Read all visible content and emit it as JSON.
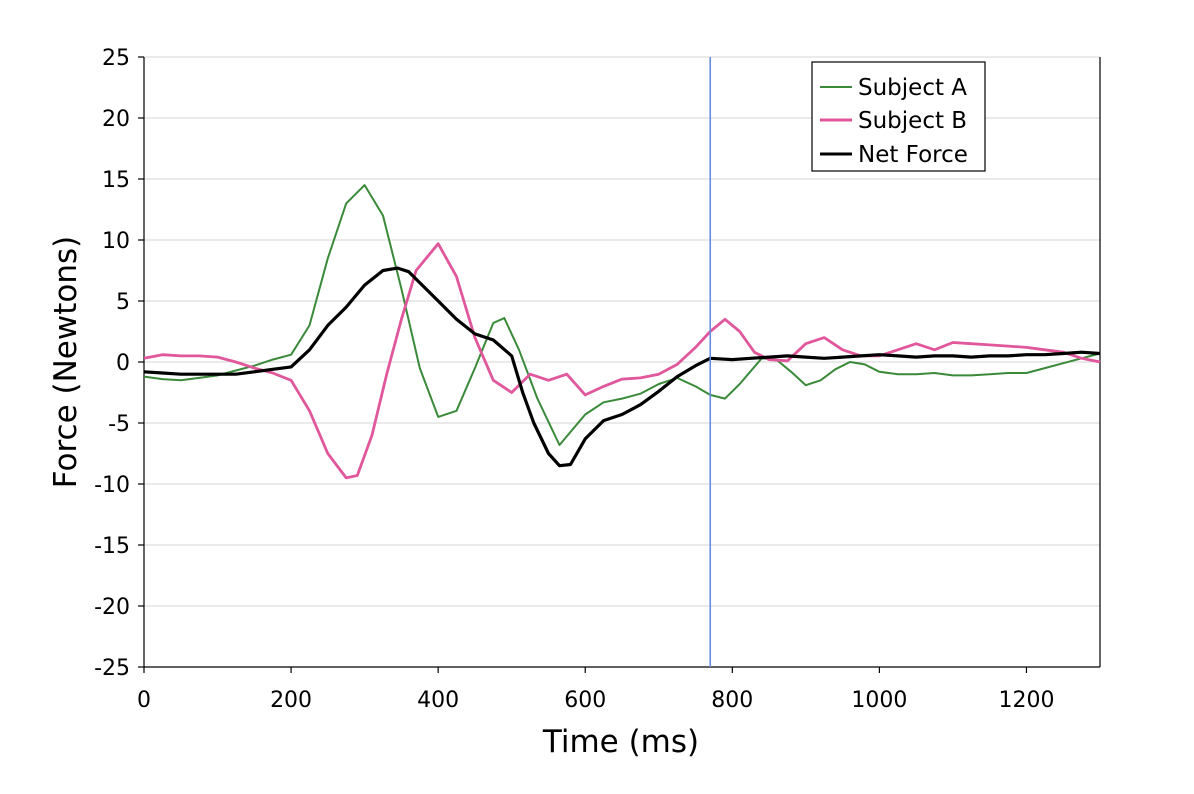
{
  "chart_data": {
    "type": "line",
    "title": "",
    "xlabel": "Time (ms)",
    "ylabel": "Force (Newtons)",
    "xlim": [
      0,
      1300
    ],
    "ylim": [
      -25,
      25
    ],
    "xticks": [
      0,
      200,
      400,
      600,
      800,
      1000,
      1200
    ],
    "yticks": [
      -25,
      -20,
      -15,
      -10,
      -5,
      0,
      5,
      10,
      15,
      20,
      25
    ],
    "grid": "horizontal",
    "legend_position": "top-right",
    "vertical_marker_x": 770,
    "series": [
      {
        "name": "Subject A",
        "color": "#3a8a3a",
        "x": [
          0,
          25,
          50,
          75,
          100,
          125,
          150,
          175,
          200,
          225,
          250,
          275,
          300,
          325,
          350,
          375,
          400,
          425,
          450,
          475,
          490,
          510,
          535,
          565,
          600,
          625,
          650,
          675,
          700,
          725,
          750,
          770,
          790,
          810,
          840,
          860,
          880,
          900,
          920,
          940,
          960,
          980,
          1000,
          1025,
          1050,
          1075,
          1100,
          1125,
          1150,
          1175,
          1200,
          1225,
          1250,
          1275,
          1300
        ],
        "values": [
          -1.2,
          -1.4,
          -1.5,
          -1.3,
          -1.1,
          -0.7,
          -0.3,
          0.2,
          0.6,
          3.0,
          8.5,
          13.0,
          14.5,
          12.0,
          6.0,
          -0.5,
          -4.5,
          -4.0,
          -0.5,
          3.2,
          3.6,
          1.0,
          -3.0,
          -6.8,
          -4.3,
          -3.3,
          -3.0,
          -2.6,
          -1.8,
          -1.3,
          -2.0,
          -2.7,
          -3.0,
          -1.8,
          0.3,
          0.2,
          -0.8,
          -1.9,
          -1.5,
          -0.6,
          0.0,
          -0.2,
          -0.8,
          -1.0,
          -1.0,
          -0.9,
          -1.1,
          -1.1,
          -1.0,
          -0.9,
          -0.9,
          -0.5,
          -0.1,
          0.3,
          0.7
        ]
      },
      {
        "name": "Subject B",
        "color": "#e0579c",
        "x": [
          0,
          25,
          50,
          75,
          100,
          125,
          150,
          175,
          200,
          225,
          250,
          275,
          290,
          310,
          330,
          350,
          370,
          400,
          425,
          450,
          475,
          500,
          525,
          550,
          575,
          600,
          625,
          650,
          675,
          700,
          725,
          750,
          770,
          790,
          810,
          830,
          850,
          875,
          900,
          925,
          950,
          975,
          1000,
          1025,
          1050,
          1075,
          1100,
          1125,
          1150,
          1175,
          1200,
          1225,
          1250,
          1275,
          1300
        ],
        "values": [
          0.3,
          0.6,
          0.5,
          0.5,
          0.4,
          0.0,
          -0.5,
          -0.9,
          -1.5,
          -4.0,
          -7.5,
          -9.5,
          -9.3,
          -6.0,
          -1.0,
          3.5,
          7.5,
          9.7,
          7.0,
          2.0,
          -1.5,
          -2.5,
          -1.0,
          -1.5,
          -1.0,
          -2.7,
          -2.0,
          -1.4,
          -1.3,
          -1.0,
          -0.2,
          1.2,
          2.5,
          3.5,
          2.5,
          0.8,
          0.2,
          0.1,
          1.5,
          2.0,
          1.0,
          0.5,
          0.5,
          1.0,
          1.5,
          1.0,
          1.6,
          1.5,
          1.4,
          1.3,
          1.2,
          1.0,
          0.8,
          0.3,
          0.0
        ]
      },
      {
        "name": "Net Force",
        "color": "#000000",
        "x": [
          0,
          25,
          50,
          75,
          100,
          125,
          150,
          175,
          200,
          225,
          250,
          275,
          300,
          325,
          345,
          360,
          375,
          400,
          425,
          450,
          475,
          500,
          515,
          530,
          550,
          565,
          580,
          600,
          625,
          650,
          675,
          700,
          725,
          750,
          770,
          800,
          825,
          850,
          875,
          900,
          925,
          950,
          975,
          1000,
          1025,
          1050,
          1075,
          1100,
          1125,
          1150,
          1175,
          1200,
          1225,
          1250,
          1275,
          1300
        ],
        "values": [
          -0.8,
          -0.9,
          -1.0,
          -1.0,
          -1.0,
          -1.0,
          -0.8,
          -0.6,
          -0.4,
          1.0,
          3.0,
          4.5,
          6.3,
          7.5,
          7.7,
          7.4,
          6.5,
          5.0,
          3.5,
          2.3,
          1.8,
          0.5,
          -2.5,
          -5.0,
          -7.5,
          -8.5,
          -8.4,
          -6.3,
          -4.8,
          -4.3,
          -3.5,
          -2.4,
          -1.2,
          -0.3,
          0.3,
          0.2,
          0.3,
          0.4,
          0.5,
          0.4,
          0.3,
          0.4,
          0.5,
          0.6,
          0.5,
          0.4,
          0.5,
          0.5,
          0.4,
          0.5,
          0.5,
          0.6,
          0.6,
          0.7,
          0.8,
          0.7
        ]
      }
    ]
  }
}
